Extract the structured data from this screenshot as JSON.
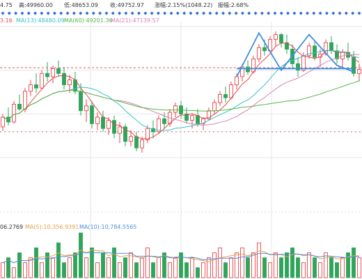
{
  "info_bar": {
    "open_fragment": "4.75",
    "high_label": "高:49960.00",
    "low_label": "低:48653.09",
    "close_label": "收:49752.97",
    "change_label": "涨幅:2.15%(1048.22)",
    "amplitude_label": "振幅:2.68%"
  },
  "ma_legend": {
    "ma_partial": "3.16",
    "ma13": "MA(13):48480.09",
    "ma60": "MA(60):49201.36",
    "ma21": "MA(21):47139.57"
  },
  "volume_legend": {
    "vol_partial": "06.2769",
    "ma5": "MA(5):10,356.9391",
    "ma10": "MA(10):10,784.5565"
  },
  "colors": {
    "up": "#e8414a",
    "down": "#2ea55a",
    "ma_red": "#e04a4a",
    "ma_cyan": "#35c2c8",
    "ma_green": "#52b545",
    "ma_pink": "#d880b4",
    "pattern_blue": "#3b8de0",
    "marker_blue": "#2f6fd6",
    "vol_ma_orange": "#e6a04a",
    "vol_ma_blue": "#4a8ce0",
    "dashed_line": "#d45a5a",
    "grid": "#e6e6e6",
    "bg": "#ffffff"
  },
  "chart_data": {
    "type": "candlestick",
    "approx_reference_level": 49850,
    "candles": [
      {
        "o": 46200,
        "h": 47000,
        "l": 45950,
        "c": 46800
      },
      {
        "o": 46800,
        "h": 47400,
        "l": 46300,
        "c": 46500
      },
      {
        "o": 46500,
        "h": 47800,
        "l": 46400,
        "c": 47600
      },
      {
        "o": 47600,
        "h": 48200,
        "l": 47200,
        "c": 47300
      },
      {
        "o": 47300,
        "h": 48600,
        "l": 47100,
        "c": 48400
      },
      {
        "o": 48400,
        "h": 49100,
        "l": 48100,
        "c": 48800
      },
      {
        "o": 48800,
        "h": 49500,
        "l": 48300,
        "c": 48600
      },
      {
        "o": 48600,
        "h": 49700,
        "l": 48500,
        "c": 49500
      },
      {
        "o": 49500,
        "h": 50200,
        "l": 49000,
        "c": 49300
      },
      {
        "o": 49300,
        "h": 50000,
        "l": 48900,
        "c": 49800
      },
      {
        "o": 49800,
        "h": 50300,
        "l": 49300,
        "c": 49500
      },
      {
        "o": 49500,
        "h": 49900,
        "l": 48500,
        "c": 48800
      },
      {
        "o": 48800,
        "h": 49400,
        "l": 48300,
        "c": 49100
      },
      {
        "o": 49100,
        "h": 49600,
        "l": 48200,
        "c": 48400
      },
      {
        "o": 48400,
        "h": 48900,
        "l": 46900,
        "c": 47200
      },
      {
        "o": 47200,
        "h": 47900,
        "l": 46500,
        "c": 47500
      },
      {
        "o": 47500,
        "h": 47800,
        "l": 46100,
        "c": 46400
      },
      {
        "o": 46400,
        "h": 47100,
        "l": 46000,
        "c": 46800
      },
      {
        "o": 46800,
        "h": 47200,
        "l": 45900,
        "c": 46100
      },
      {
        "o": 46100,
        "h": 46800,
        "l": 45700,
        "c": 46600
      },
      {
        "o": 46600,
        "h": 46900,
        "l": 45500,
        "c": 45800
      },
      {
        "o": 45800,
        "h": 46500,
        "l": 45200,
        "c": 46200
      },
      {
        "o": 46200,
        "h": 46400,
        "l": 45000,
        "c": 45300
      },
      {
        "o": 45300,
        "h": 46000,
        "l": 45000,
        "c": 45600
      },
      {
        "o": 45600,
        "h": 45900,
        "l": 44700,
        "c": 44900
      },
      {
        "o": 44900,
        "h": 45600,
        "l": 44600,
        "c": 45400
      },
      {
        "o": 45400,
        "h": 46300,
        "l": 45200,
        "c": 46100
      },
      {
        "o": 46100,
        "h": 46600,
        "l": 45500,
        "c": 45900
      },
      {
        "o": 45900,
        "h": 46900,
        "l": 45800,
        "c": 46700
      },
      {
        "o": 46700,
        "h": 47100,
        "l": 46100,
        "c": 46400
      },
      {
        "o": 46400,
        "h": 47300,
        "l": 46200,
        "c": 47100
      },
      {
        "o": 47100,
        "h": 47700,
        "l": 46800,
        "c": 47500
      },
      {
        "o": 47500,
        "h": 47800,
        "l": 46700,
        "c": 47000
      },
      {
        "o": 47000,
        "h": 47400,
        "l": 46400,
        "c": 46600
      },
      {
        "o": 46600,
        "h": 47000,
        "l": 46100,
        "c": 46900
      },
      {
        "o": 46900,
        "h": 47300,
        "l": 46200,
        "c": 46400
      },
      {
        "o": 46400,
        "h": 46800,
        "l": 46000,
        "c": 46700
      },
      {
        "o": 46700,
        "h": 47400,
        "l": 46600,
        "c": 47200
      },
      {
        "o": 47200,
        "h": 47900,
        "l": 47000,
        "c": 47700
      },
      {
        "o": 47700,
        "h": 48400,
        "l": 47500,
        "c": 48200
      },
      {
        "o": 48200,
        "h": 48700,
        "l": 47700,
        "c": 48000
      },
      {
        "o": 48000,
        "h": 49000,
        "l": 47900,
        "c": 48800
      },
      {
        "o": 48800,
        "h": 49500,
        "l": 48500,
        "c": 49300
      },
      {
        "o": 49300,
        "h": 50100,
        "l": 49000,
        "c": 49900
      },
      {
        "o": 49900,
        "h": 50300,
        "l": 49400,
        "c": 49600
      },
      {
        "o": 49600,
        "h": 50600,
        "l": 49500,
        "c": 50400
      },
      {
        "o": 50400,
        "h": 51300,
        "l": 50200,
        "c": 51100
      },
      {
        "o": 51100,
        "h": 51600,
        "l": 50600,
        "c": 50900
      },
      {
        "o": 50900,
        "h": 51800,
        "l": 50800,
        "c": 51600
      },
      {
        "o": 51600,
        "h": 52100,
        "l": 51200,
        "c": 51900
      },
      {
        "o": 51900,
        "h": 52000,
        "l": 51100,
        "c": 51400
      },
      {
        "o": 51400,
        "h": 51900,
        "l": 50700,
        "c": 51000
      },
      {
        "o": 51000,
        "h": 51300,
        "l": 49800,
        "c": 50100
      },
      {
        "o": 50100,
        "h": 50500,
        "l": 49300,
        "c": 49700
      },
      {
        "o": 49700,
        "h": 50800,
        "l": 49600,
        "c": 50600
      },
      {
        "o": 50600,
        "h": 51400,
        "l": 50400,
        "c": 51200
      },
      {
        "o": 51200,
        "h": 51500,
        "l": 50300,
        "c": 50500
      },
      {
        "o": 50500,
        "h": 51000,
        "l": 49900,
        "c": 50700
      },
      {
        "o": 50700,
        "h": 51600,
        "l": 50600,
        "c": 51400
      },
      {
        "o": 51400,
        "h": 51800,
        "l": 50700,
        "c": 50900
      },
      {
        "o": 50900,
        "h": 51300,
        "l": 50100,
        "c": 50400
      },
      {
        "o": 50400,
        "h": 51000,
        "l": 49900,
        "c": 50800
      },
      {
        "o": 50800,
        "h": 51400,
        "l": 50300,
        "c": 50500
      },
      {
        "o": 50500,
        "h": 50900,
        "l": 49300,
        "c": 49500
      },
      {
        "o": 49500,
        "h": 50100,
        "l": 49000,
        "c": 49750
      }
    ],
    "volumes": [
      3,
      4,
      2,
      5,
      3,
      4,
      6,
      3,
      5,
      4,
      7,
      3,
      4,
      5,
      9,
      4,
      6,
      3,
      5,
      4,
      6,
      3,
      4,
      5,
      3,
      4,
      6,
      3,
      4,
      5,
      3,
      4,
      5,
      3,
      4,
      2,
      3,
      4,
      5,
      6,
      3,
      4,
      5,
      6,
      4,
      5,
      7,
      4,
      3,
      5,
      4,
      5,
      6,
      4,
      3,
      5,
      4,
      3,
      5,
      4,
      3,
      4,
      5,
      6,
      4
    ],
    "pattern_points": [
      [
        42,
        49300
      ],
      [
        46,
        52000
      ],
      [
        50,
        49700
      ],
      [
        55,
        51900
      ],
      [
        60,
        50000
      ],
      [
        63,
        49600
      ]
    ],
    "pattern_baseline": 49800,
    "marker_count": 56
  }
}
